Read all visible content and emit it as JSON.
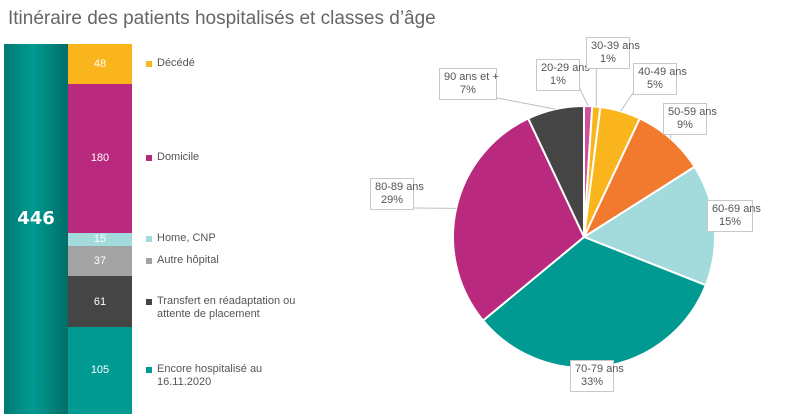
{
  "title": "Itinéraire des patients hospitalisés et classes d’âge",
  "total": "446",
  "chart_data": [
    {
      "type": "bar",
      "stacked": true,
      "categories": [
        "Décédé",
        "Domicile",
        "Home, CNP",
        "Autre hôpital",
        "Transfert en réadaptation ou attente de placement",
        "Encore hospitalisé au 16.11.2020"
      ],
      "values": [
        48,
        180,
        15,
        37,
        61,
        105
      ],
      "labels": [
        "48",
        "180",
        "15",
        "37",
        "61",
        "105"
      ],
      "colors": [
        "#f9b51b",
        "#b9297e",
        "#a3dbdc",
        "#a3a3a3",
        "#454545",
        "#009a92"
      ],
      "total": 446
    },
    {
      "type": "pie",
      "categories": [
        "20-29 ans",
        "30-39 ans",
        "40-49 ans",
        "50-59 ans",
        "60-69 ans",
        "70-79 ans",
        "80-89 ans",
        "90 ans et +"
      ],
      "values": [
        1,
        1,
        5,
        9,
        15,
        33,
        29,
        7
      ],
      "percent_labels": [
        "1%",
        "1%",
        "5%",
        "9%",
        "15%",
        "33%",
        "29%",
        "7%"
      ],
      "colors": [
        "#cf4f9b",
        "#f9b51b",
        "#f9b51b",
        "#f27a2e",
        "#a3dbdc",
        "#009a92",
        "#b9297e",
        "#454545"
      ],
      "label_placement": "outside-with-leaders"
    }
  ]
}
